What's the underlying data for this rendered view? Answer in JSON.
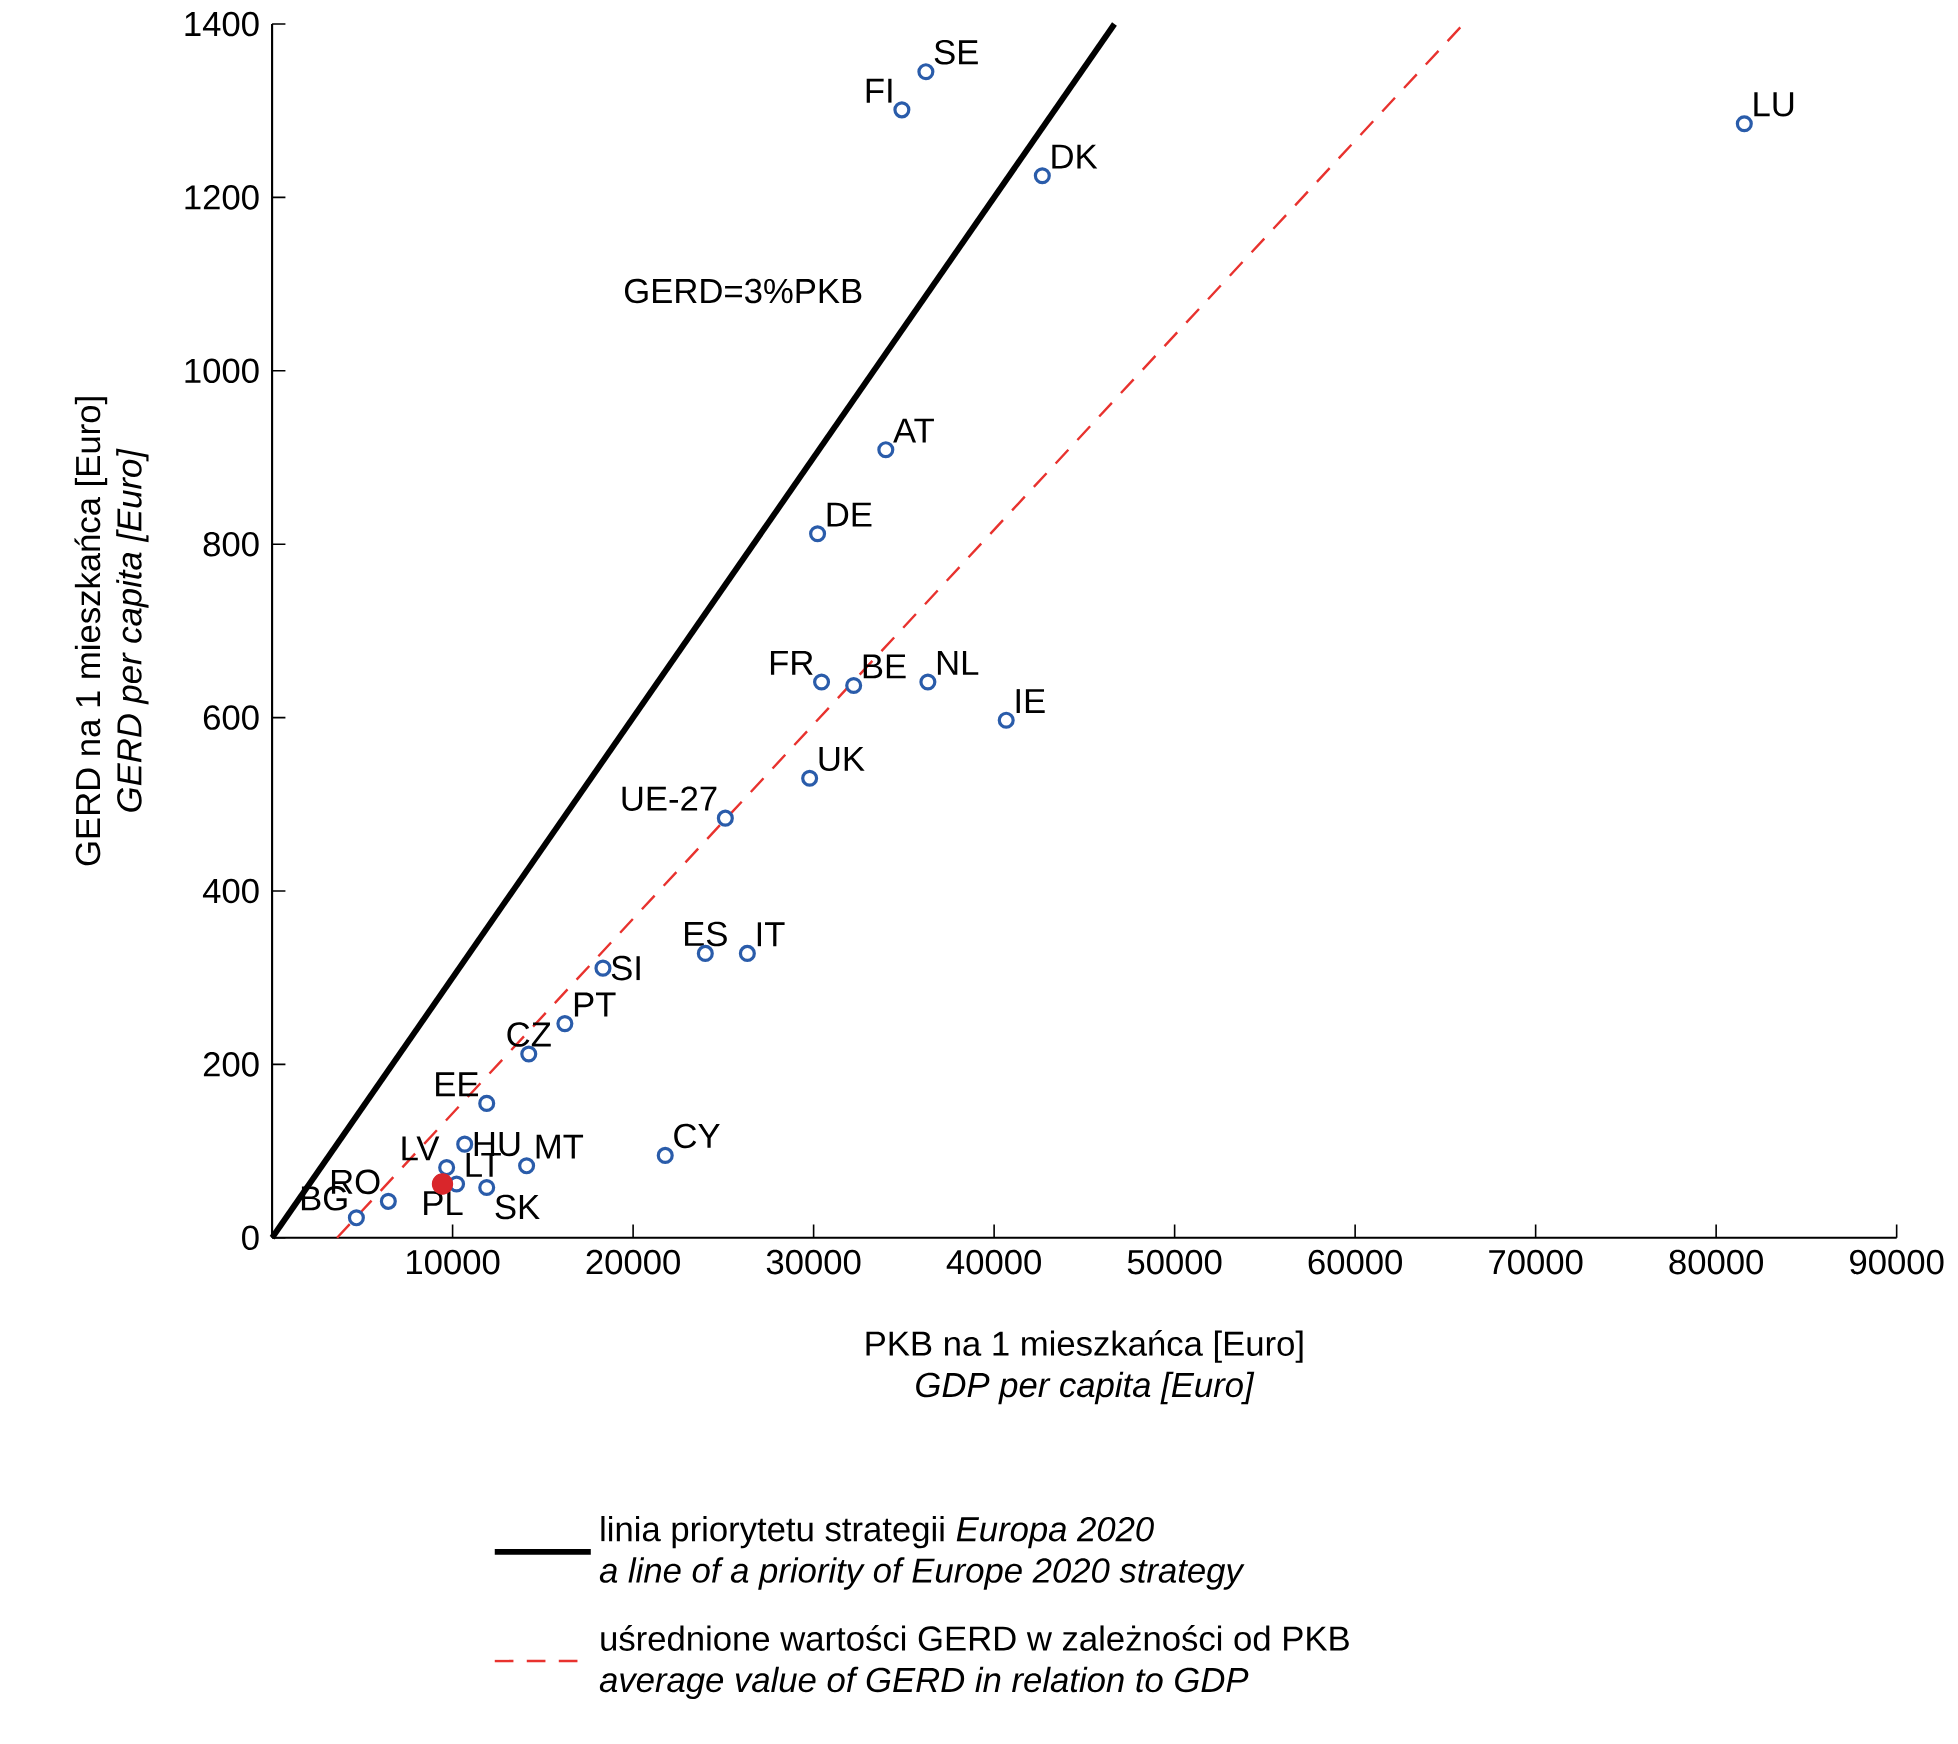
{
  "chart_data": {
    "type": "scatter",
    "xlabel": "PKB na 1 mieszkańca [Euro]\n*GDP per capita [Euro]*",
    "ylabel": "GERD na 1 mieszkańca [Euro]\n*GERD per capita [Euro]*",
    "xlim": [
      0,
      90000
    ],
    "ylim": [
      0,
      1400
    ],
    "xticks": [
      10000,
      20000,
      30000,
      40000,
      50000,
      60000,
      70000,
      80000,
      90000
    ],
    "yticks": [
      0,
      200,
      400,
      600,
      800,
      1000,
      1200,
      1400
    ],
    "legend": "bottom",
    "series": [
      {
        "name": "linia priorytetu strategii *Europa 2020*\n*a line of a priority of Europe 2020 strategy*",
        "type": "line",
        "color": "#000000",
        "line_style": "solid",
        "marker": "none",
        "x": [
          0,
          46667
        ],
        "values": [
          0,
          1400
        ]
      },
      {
        "name": "uśrednione wartości GERD w zależności od PKB\n*average value of GERD in relation to GDP*",
        "type": "line",
        "color": "#e8322e",
        "line_style": "dashed",
        "marker": "none",
        "x": [
          3600,
          66000
        ],
        "values": [
          0,
          1400
        ]
      },
      {
        "color": "#2a5caa",
        "marker": "circle",
        "x": [
          36220,
          34890,
          42670,
          81560,
          34000,
          30220,
          30440,
          32220,
          36330,
          40670,
          29780,
          25110,
          24000,
          26330,
          18330,
          16220,
          14220,
          11890,
          21780,
          14100,
          10670,
          9670,
          10220,
          11890,
          6440,
          4670
        ],
        "values": [
          1345,
          1301,
          1225,
          1285,
          909,
          812,
          641,
          637,
          641,
          597,
          530,
          484,
          328,
          328,
          311,
          247,
          212,
          155,
          95,
          83,
          108,
          81,
          62,
          58,
          42,
          23
        ]
      },
      {
        "color": "#d9262b",
        "marker": "circle",
        "x": [
          9440
        ],
        "values": [
          62
        ]
      }
    ],
    "annotations": [
      "GERD=3%PKB",
      {
        "text": "SE",
        "x": 36220,
        "y": 1345
      },
      {
        "text": "FI",
        "x": 34890,
        "y": 1301
      },
      {
        "text": "DK",
        "x": 42670,
        "y": 1225
      },
      {
        "text": "LU",
        "x": 81560,
        "y": 1285
      },
      {
        "text": "AT",
        "x": 34000,
        "y": 909
      },
      {
        "text": "DE",
        "x": 30220,
        "y": 812
      },
      {
        "text": "FR",
        "x": 30440,
        "y": 641
      },
      {
        "text": "BE",
        "x": 32220,
        "y": 637
      },
      {
        "text": "NL",
        "x": 36330,
        "y": 641
      },
      {
        "text": "IE",
        "x": 40670,
        "y": 597
      },
      {
        "text": "UK",
        "x": 29780,
        "y": 530
      },
      {
        "text": "UE-27",
        "x": 25110,
        "y": 484
      },
      {
        "text": "ES",
        "x": 24000,
        "y": 328
      },
      {
        "text": "IT",
        "x": 26330,
        "y": 328
      },
      {
        "text": "SI",
        "x": 18330,
        "y": 311
      },
      {
        "text": "PT",
        "x": 16220,
        "y": 247
      },
      {
        "text": "CZ",
        "x": 14220,
        "y": 212
      },
      {
        "text": "EE",
        "x": 11890,
        "y": 155
      },
      {
        "text": "CY",
        "x": 21780,
        "y": 95
      },
      {
        "text": "MT",
        "x": 14100,
        "y": 83
      },
      {
        "text": "HU",
        "x": 10670,
        "y": 108
      },
      {
        "text": "LV",
        "x": 9670,
        "y": 81
      },
      {
        "text": "LT",
        "x": 10220,
        "y": 62
      },
      {
        "text": "SK",
        "x": 11890,
        "y": 58
      },
      {
        "text": "PL",
        "x": 9440,
        "y": 62
      },
      {
        "text": "RO",
        "x": 6440,
        "y": 42
      },
      {
        "text": "BG",
        "x": 4670,
        "y": 23
      }
    ]
  }
}
